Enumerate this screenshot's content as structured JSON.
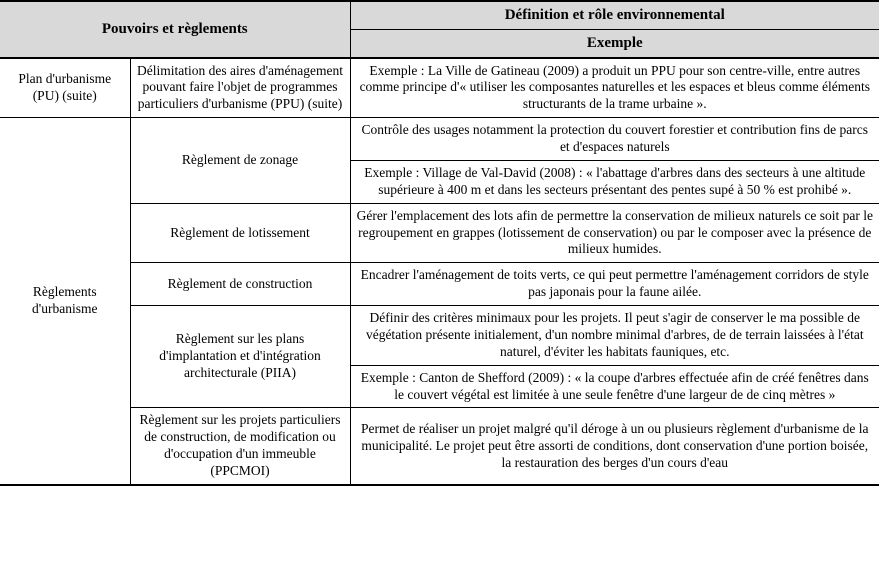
{
  "colors": {
    "header_bg": "#d9d9d9",
    "border": "#000000",
    "text": "#000000",
    "page_bg": "#ffffff"
  },
  "fonts": {
    "family": "Times New Roman",
    "header_size_pt": 11,
    "body_size_pt": 10
  },
  "header": {
    "left": "Pouvoirs et règlements",
    "right_top": "Définition et rôle environnemental",
    "right_bottom": "Exemple"
  },
  "rows": {
    "pu": {
      "category": "Plan d'urbanisme (PU) (suite)",
      "subcategory": "Délimitation des aires d'aménagement pouvant faire l'objet de programmes particuliers d'urbanisme (PPU) (suite)",
      "example": "Exemple : La Ville de Gatineau (2009) a produit un PPU pour son centre-ville, entre autres comme principe d'« utiliser les composantes naturelles et les espaces et bleus comme éléments structurants de la trame urbaine »."
    },
    "ru": {
      "category": "Règlements d'urbanisme",
      "zonage": {
        "label": "Règlement de zonage",
        "definition": "Contrôle des usages notamment la protection du couvert forestier et contribution fins de parcs et d'espaces naturels",
        "example": "Exemple : Village de Val-David (2008) : « l'abattage d'arbres dans des secteurs à une altitude supérieure à 400 m et dans les secteurs présentant des pentes supé à 50 % est prohibé »."
      },
      "lotissement": {
        "label": "Règlement de lotissement",
        "definition": "Gérer l'emplacement des lots afin de permettre la conservation de milieux naturels ce soit par le regroupement en grappes (lotissement de conservation) ou par le composer avec la présence de milieux humides."
      },
      "construction": {
        "label": "Règlement de construction",
        "definition": "Encadrer l'aménagement de toits verts, ce qui peut permettre l'aménagement corridors de style pas japonais pour la faune ailée."
      },
      "piia": {
        "label": "Règlement sur les plans d'implantation et d'intégration architecturale (PIIA)",
        "definition": "Définir des critères minimaux pour les projets. Il peut s'agir de conserver le ma possible de végétation présente initialement, d'un nombre minimal d'arbres, de de terrain laissées à l'état naturel, d'éviter les habitats fauniques, etc.",
        "example": "Exemple : Canton de Shefford (2009) : « la coupe d'arbres effectuée afin de créé fenêtres dans le couvert végétal est limitée à une seule fenêtre d'une largeur de de cinq mètres »"
      },
      "ppcmoi": {
        "label": "Règlement sur les projets particuliers de construction, de modification ou d'occupation d'un immeuble (PPCMOI)",
        "definition": "Permet de réaliser un projet malgré qu'il déroge à un ou plusieurs règlement d'urbanisme de la municipalité. Le projet peut être assorti de conditions, dont conservation d'une portion boisée, la restauration des berges d'un cours d'eau"
      }
    }
  }
}
